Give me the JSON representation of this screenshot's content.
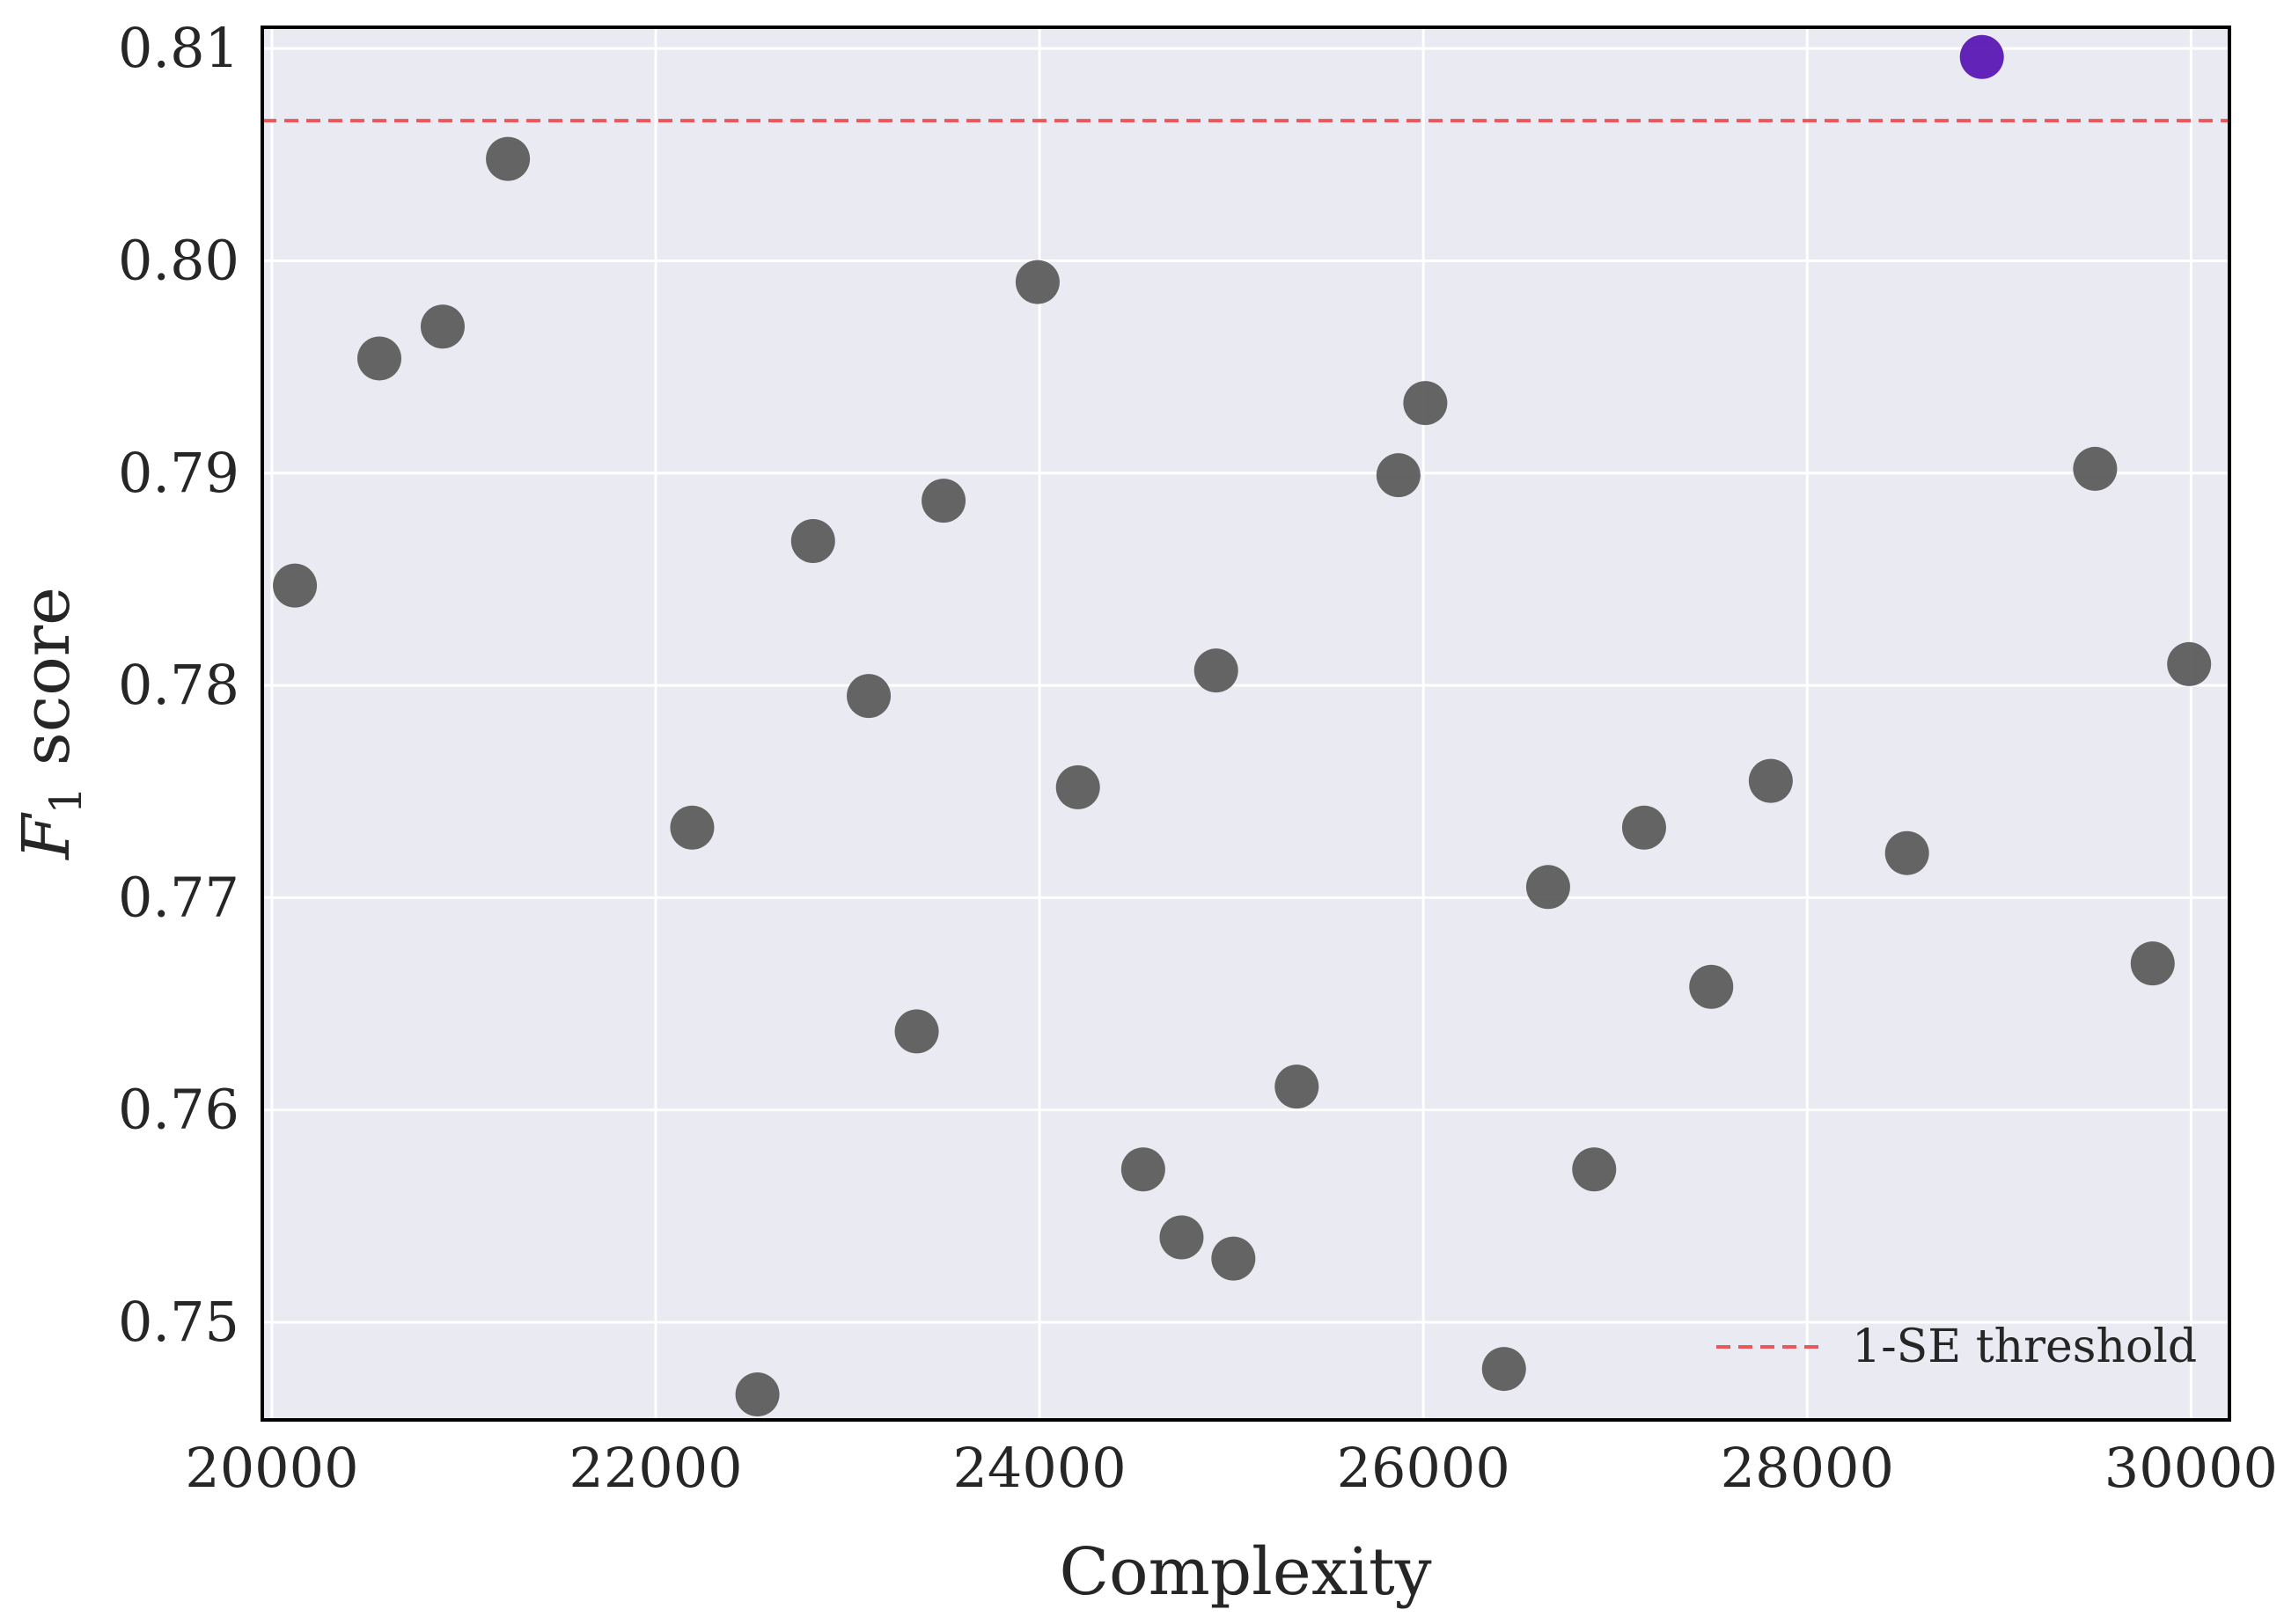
{
  "chart_data": {
    "type": "scatter",
    "title": "",
    "xlabel": "Complexity",
    "ylabel_italic": "F",
    "ylabel_sub": "1",
    "ylabel_rest": " score",
    "xlim": [
      19950,
      30200
    ],
    "ylim": [
      0.7454,
      0.811
    ],
    "xticks": [
      20000,
      22000,
      24000,
      26000,
      28000,
      30000
    ],
    "yticks": [
      0.75,
      0.76,
      0.77,
      0.78,
      0.79,
      0.8,
      0.81
    ],
    "xtick_labels": [
      "20000",
      "22000",
      "24000",
      "26000",
      "28000",
      "30000"
    ],
    "ytick_labels": [
      "0.75",
      "0.76",
      "0.77",
      "0.78",
      "0.79",
      "0.80",
      "0.81"
    ],
    "grid": true,
    "background_color": "#eaeaf2",
    "point_color": "#595959",
    "highlight_color": "#5b18b4",
    "threshold_color": "#e8585c",
    "threshold": 0.8066,
    "legend": {
      "label": "1-SE threshold",
      "position": "bottom-right"
    },
    "points": [
      {
        "x": 20120,
        "y": 0.7847
      },
      {
        "x": 20560,
        "y": 0.7954
      },
      {
        "x": 20890,
        "y": 0.7969
      },
      {
        "x": 21230,
        "y": 0.8048
      },
      {
        "x": 22190,
        "y": 0.7733
      },
      {
        "x": 22530,
        "y": 0.7466
      },
      {
        "x": 22820,
        "y": 0.7868
      },
      {
        "x": 23110,
        "y": 0.7795
      },
      {
        "x": 23360,
        "y": 0.7637
      },
      {
        "x": 23500,
        "y": 0.7887
      },
      {
        "x": 23990,
        "y": 0.799
      },
      {
        "x": 24200,
        "y": 0.7752
      },
      {
        "x": 24540,
        "y": 0.7572
      },
      {
        "x": 24740,
        "y": 0.754
      },
      {
        "x": 24920,
        "y": 0.7807
      },
      {
        "x": 25010,
        "y": 0.753
      },
      {
        "x": 25340,
        "y": 0.7611
      },
      {
        "x": 25870,
        "y": 0.7899
      },
      {
        "x": 26010,
        "y": 0.7933
      },
      {
        "x": 26420,
        "y": 0.7478
      },
      {
        "x": 26650,
        "y": 0.7705
      },
      {
        "x": 26890,
        "y": 0.7572
      },
      {
        "x": 27150,
        "y": 0.7733
      },
      {
        "x": 27500,
        "y": 0.7658
      },
      {
        "x": 27810,
        "y": 0.7755
      },
      {
        "x": 28520,
        "y": 0.7721
      },
      {
        "x": 28910,
        "y": 0.8096,
        "highlight": true
      },
      {
        "x": 29500,
        "y": 0.7902
      },
      {
        "x": 29800,
        "y": 0.7669
      },
      {
        "x": 29990,
        "y": 0.781
      }
    ]
  }
}
